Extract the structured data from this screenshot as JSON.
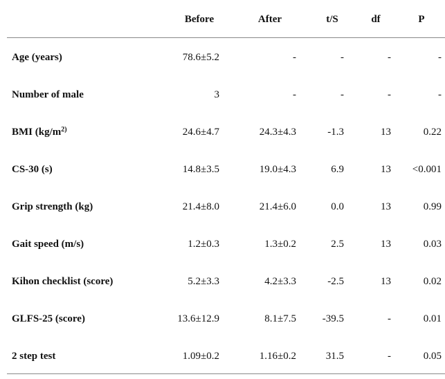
{
  "table": {
    "columns": [
      "Before",
      "After",
      "t/S",
      "df",
      "P"
    ],
    "rows": [
      {
        "label": "Age (years)",
        "cells": [
          "78.6±5.2",
          "-",
          "-",
          "-",
          "-"
        ]
      },
      {
        "label": "Number of male",
        "cells": [
          "3",
          "-",
          "-",
          "-",
          "-"
        ]
      },
      {
        "label": "BMI (kg/m",
        "label_sup": "2)",
        "cells": [
          "24.6±4.7",
          "24.3±4.3",
          "-1.3",
          "13",
          "0.22"
        ]
      },
      {
        "label": "CS-30 (s)",
        "cells": [
          "14.8±3.5",
          "19.0±4.3",
          "6.9",
          "13",
          "<0.001"
        ]
      },
      {
        "label": "Grip strength (kg)",
        "cells": [
          "21.4±8.0",
          "21.4±6.0",
          "0.0",
          "13",
          "0.99"
        ]
      },
      {
        "label": "Gait speed (m/s)",
        "cells": [
          "1.2±0.3",
          "1.3±0.2",
          "2.5",
          "13",
          "0.03"
        ]
      },
      {
        "label": "Kihon checklist (score)",
        "cells": [
          "5.2±3.3",
          "4.2±3.3",
          "-2.5",
          "13",
          "0.02"
        ]
      },
      {
        "label": "GLFS-25 (score)",
        "cells": [
          "13.6±12.9",
          "8.1±7.5",
          "-39.5",
          "-",
          "0.01"
        ]
      },
      {
        "label": "2 step test",
        "cells": [
          "1.09±0.2",
          "1.16±0.2",
          "31.5",
          "-",
          "0.05"
        ]
      }
    ]
  }
}
